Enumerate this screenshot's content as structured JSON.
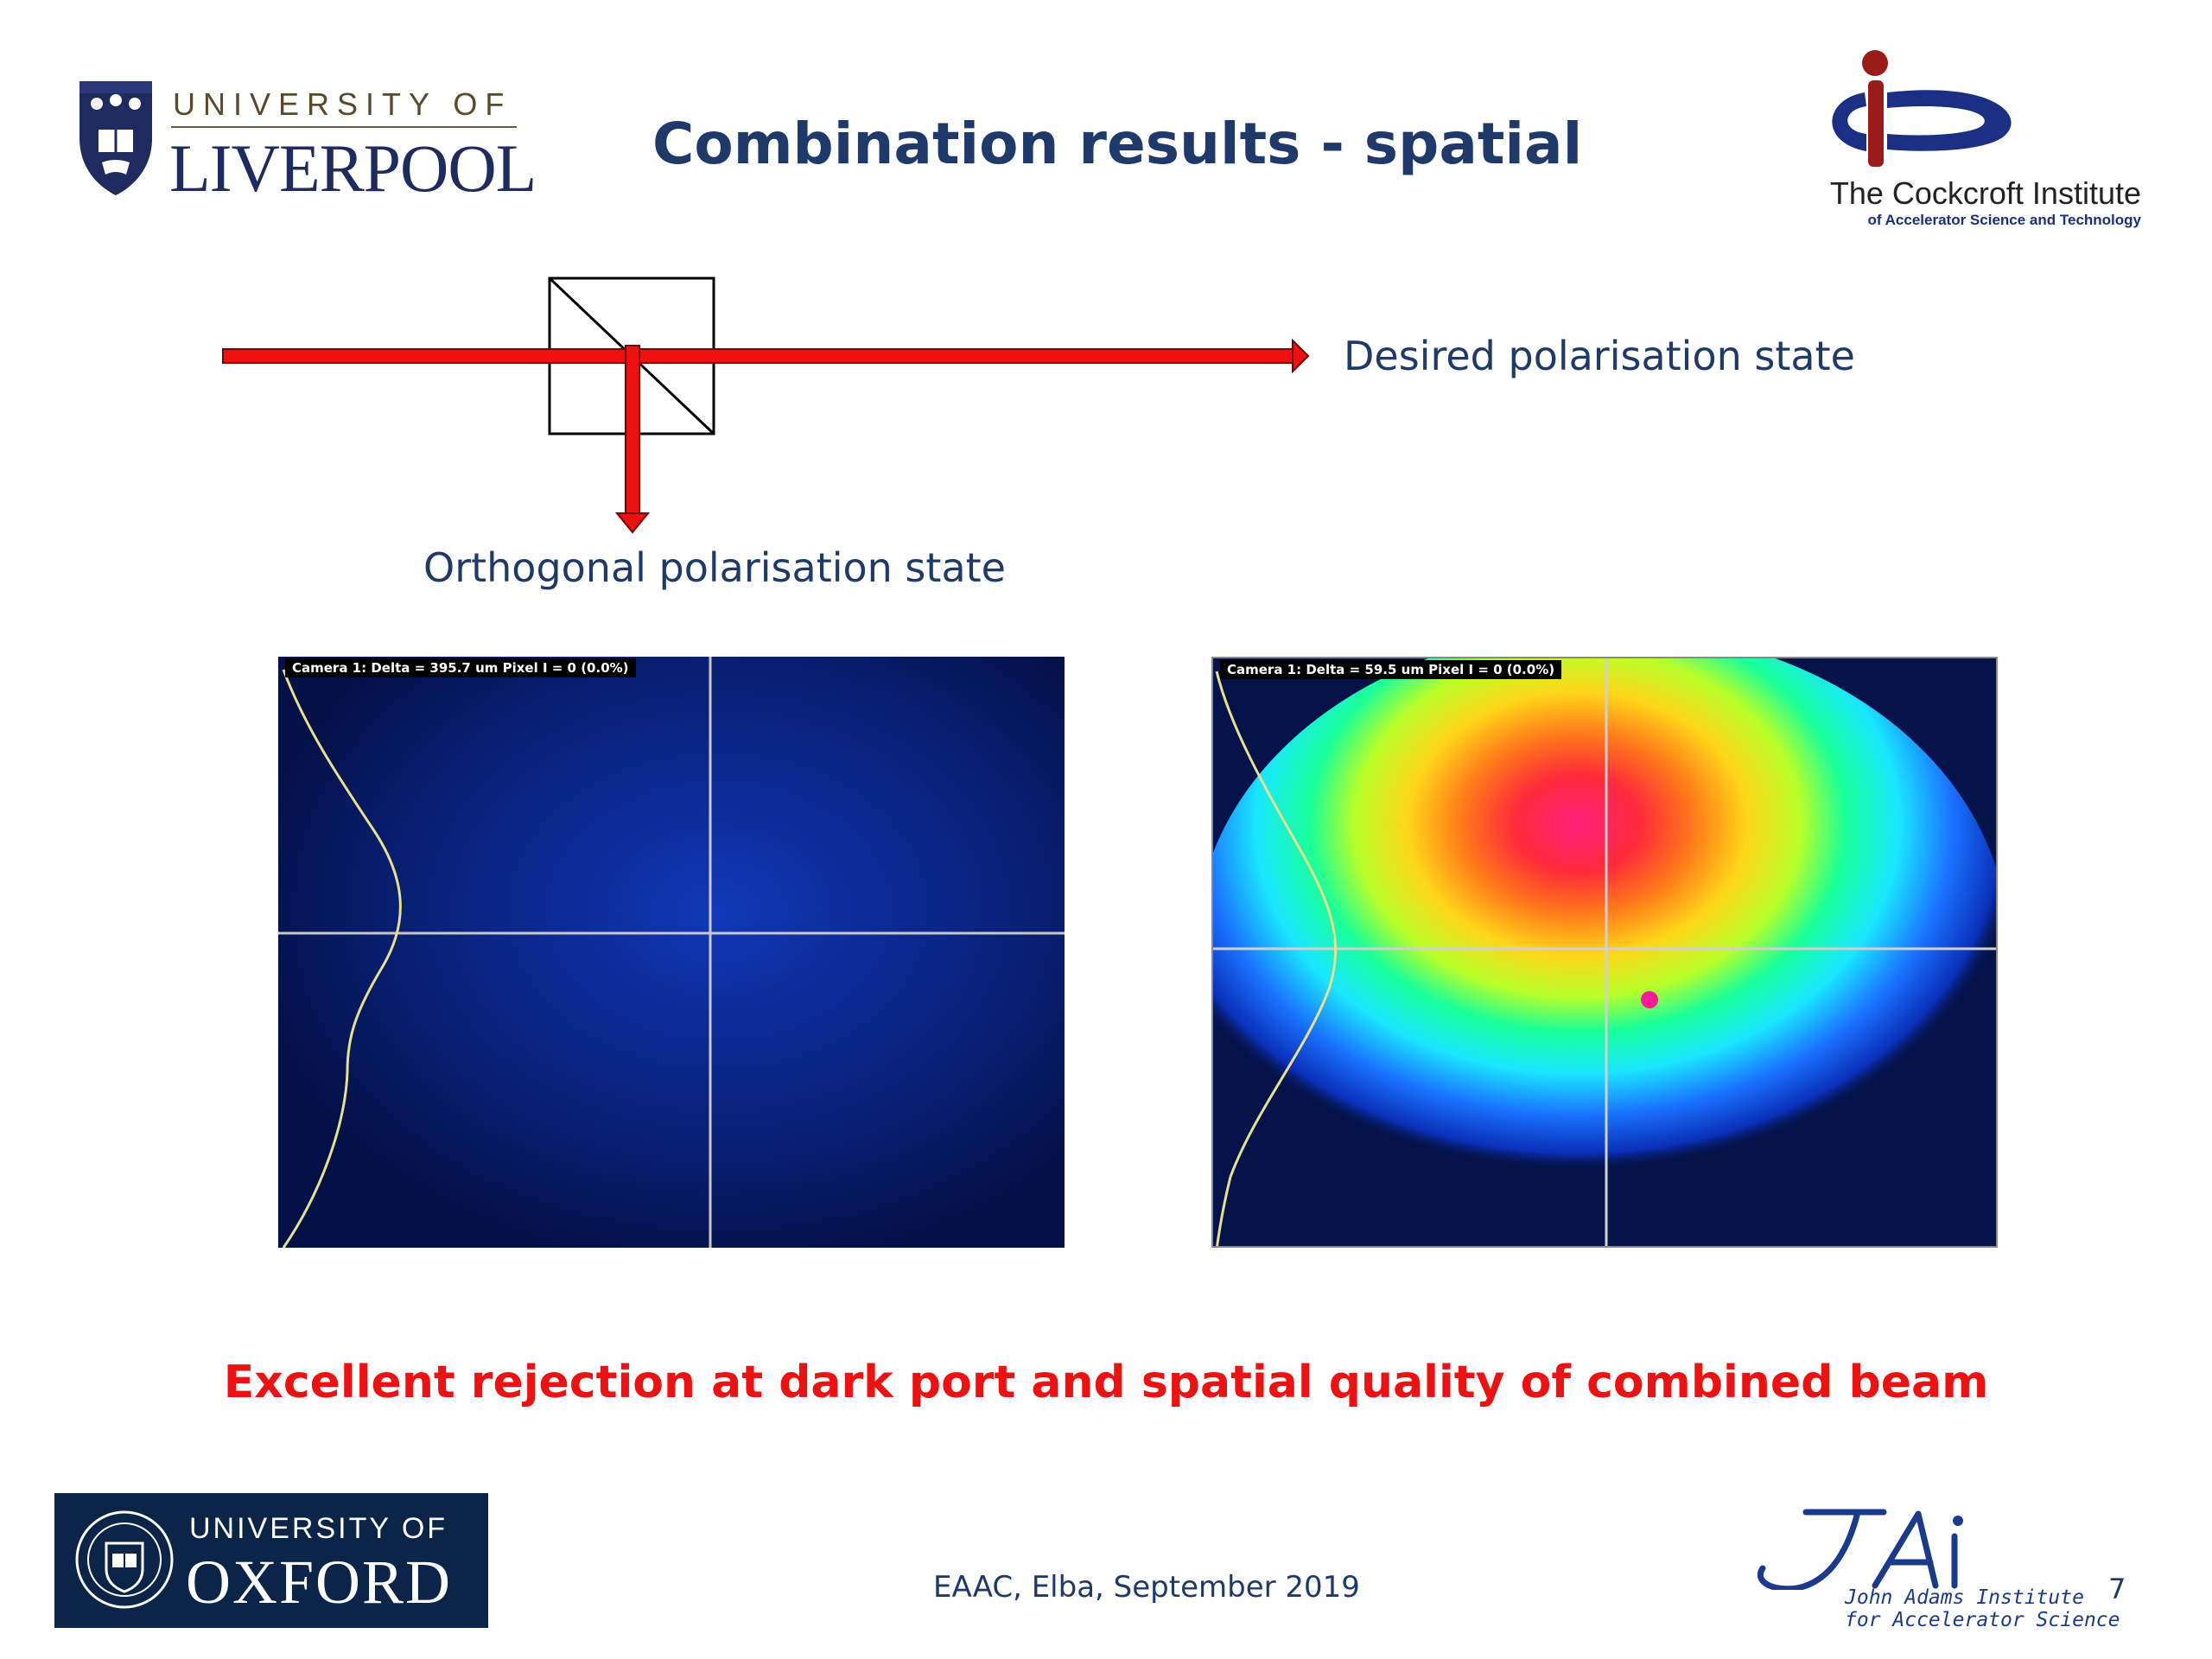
{
  "slide": {
    "title": "Combination results - spatial",
    "caption": "Excellent rejection at dark port and spatial quality of combined beam",
    "footer": "EAAC, Elba, September 2019",
    "page_number": "7"
  },
  "diagram": {
    "desired_label": "Desired polarisation state",
    "orthogonal_label": "Orthogonal polarisation state",
    "beam_color": "#ee1111"
  },
  "panels": {
    "left": {
      "camera_label": "Camera 1: Delta = 395.7 um Pixel I = 0 (0.0%)"
    },
    "right": {
      "camera_label": "Camera 1: Delta = 59.5 um Pixel I = 0 (0.0%)"
    }
  },
  "logos": {
    "liverpool": {
      "line1": "UNIVERSITY OF",
      "line2": "LIVERPOOL"
    },
    "cockcroft": {
      "name": "The Cockcroft Institute",
      "subtitle": "of Accelerator Science and Technology"
    },
    "oxford": {
      "line1": "UNIVERSITY OF",
      "line2": "OXFORD"
    },
    "jai": {
      "line1": "John Adams Institute",
      "line2": "for Accelerator Science"
    }
  },
  "colors": {
    "title": "#1f3a6a",
    "caption": "#ee1111",
    "oxford_bg": "#0b2447"
  }
}
